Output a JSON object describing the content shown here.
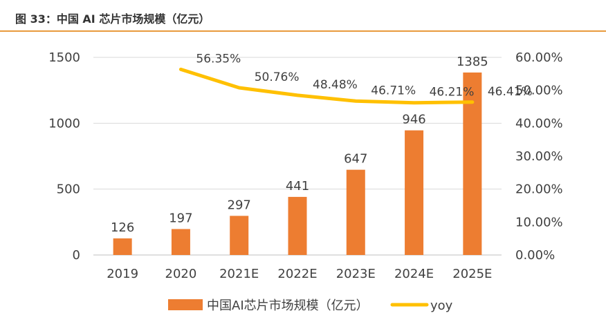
{
  "figure": {
    "title": "图 33：中国 AI 芯片市场规模（亿元）",
    "accent_color": "#e89a3c"
  },
  "chart_data": {
    "type": "bar",
    "categories": [
      "2019",
      "2020",
      "2021E",
      "2022E",
      "2023E",
      "2024E",
      "2025E"
    ],
    "series": [
      {
        "name": "中国AI芯片市场规模（亿元）",
        "type": "bar",
        "axis": "left",
        "color": "#ed7d31",
        "values": [
          126,
          197,
          297,
          441,
          647,
          946,
          1385
        ],
        "labels": [
          "126",
          "197",
          "297",
          "441",
          "647",
          "946",
          "1385"
        ]
      },
      {
        "name": "yoy",
        "type": "line",
        "axis": "right",
        "color": "#ffc000",
        "values": [
          null,
          56.35,
          50.76,
          48.48,
          46.71,
          46.21,
          46.41
        ],
        "labels": [
          null,
          "56.35%",
          "50.76%",
          "48.48%",
          "46.71%",
          "46.21%",
          "46.41%"
        ]
      }
    ],
    "y_left": {
      "min": 0,
      "max": 1500,
      "ticks": [
        "0",
        "500",
        "1000",
        "1500"
      ]
    },
    "y_right": {
      "min": 0,
      "max": 60,
      "ticks": [
        "0.00%",
        "10.00%",
        "20.00%",
        "30.00%",
        "40.00%",
        "50.00%",
        "60.00%"
      ]
    },
    "grid": true,
    "legend_position": "bottom"
  }
}
